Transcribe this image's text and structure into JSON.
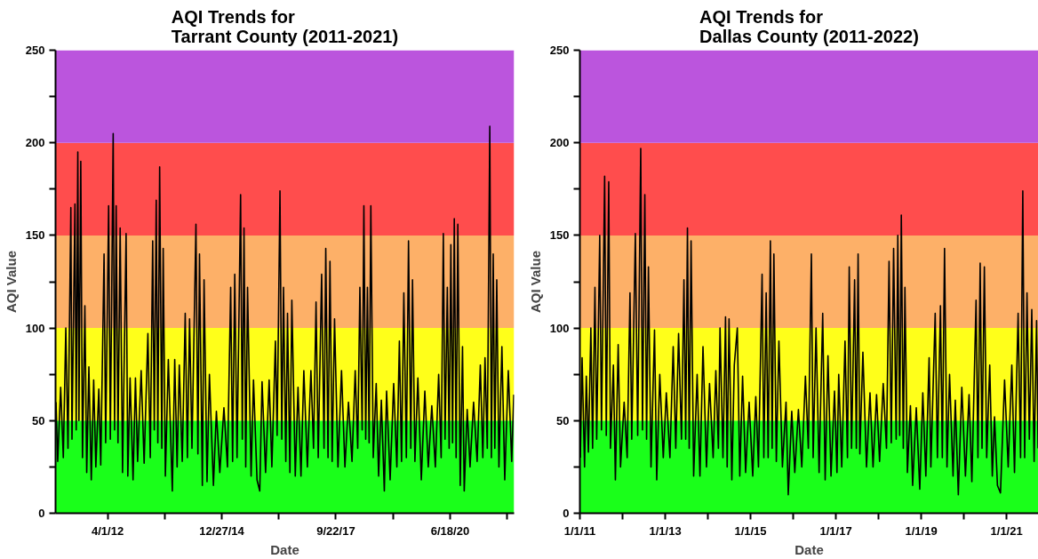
{
  "chart_data": [
    {
      "type": "line",
      "title": "AQI Trends for\nTarrant County (2011-2021)",
      "xlabel": "Date",
      "ylabel": "AQI Value",
      "xlim": [
        "2011-01-01",
        "2021-12-31"
      ],
      "xticks": [
        {
          "value": "2012-04-01",
          "label": "4/1/12"
        },
        {
          "value": "2013-08-14",
          "label": null
        },
        {
          "value": "2014-12-27",
          "label": "12/27/14"
        },
        {
          "value": "2016-05-10",
          "label": null
        },
        {
          "value": "2017-09-22",
          "label": "9/22/17"
        },
        {
          "value": "2019-02-04",
          "label": null
        },
        {
          "value": "2020-06-18",
          "label": "6/18/20"
        },
        {
          "value": "2021-10-31",
          "label": null
        }
      ],
      "ylim": [
        0,
        250
      ],
      "yticks": [
        0,
        {
          "value": 25,
          "label": null
        },
        50,
        {
          "value": 75,
          "label": null
        },
        100,
        {
          "value": 125,
          "label": null
        },
        150,
        {
          "value": 175,
          "label": null
        },
        200,
        {
          "value": 225,
          "label": null
        },
        250
      ],
      "bands": [
        {
          "axis": "y",
          "from": 0,
          "to": 50,
          "label": null,
          "color": "#1aff1a"
        },
        {
          "axis": "y",
          "from": 50,
          "to": 100,
          "label": null,
          "color": "#ffff1a"
        },
        {
          "axis": "y",
          "from": 100,
          "to": 150,
          "label": null,
          "color": "#fdb068"
        },
        {
          "axis": "y",
          "from": 150,
          "to": 200,
          "label": null,
          "color": "#ff4d4d"
        },
        {
          "axis": "y",
          "from": 200,
          "to": 250,
          "label": null,
          "color": "#bb55dd"
        }
      ],
      "series": [
        {
          "color": "#000000",
          "x": [
            "2011-01-05",
            "2011-01-20",
            "2011-02-15",
            "2011-03-10",
            "2011-04-01",
            "2011-04-20",
            "2011-05-15",
            "2011-05-25",
            "2011-06-20",
            "2011-07-01",
            "2011-07-15",
            "2011-07-25",
            "2011-08-10",
            "2011-08-25",
            "2011-09-15",
            "2011-10-01",
            "2011-10-20",
            "2011-11-10",
            "2011-12-01",
            "2011-12-20",
            "2012-01-15",
            "2012-02-01",
            "2012-03-01",
            "2012-03-15",
            "2012-04-10",
            "2012-04-25",
            "2012-05-20",
            "2012-06-01",
            "2012-06-15",
            "2012-07-01",
            "2012-07-20",
            "2012-08-10",
            "2012-09-10",
            "2012-09-25",
            "2012-10-15",
            "2012-11-10",
            "2012-12-01",
            "2012-12-20",
            "2013-01-20",
            "2013-02-15",
            "2013-03-20",
            "2013-04-10",
            "2013-05-01",
            "2013-05-15",
            "2013-06-01",
            "2013-06-15",
            "2013-07-01",
            "2013-07-20",
            "2013-08-01",
            "2013-08-20",
            "2013-09-15",
            "2013-10-20",
            "2013-11-10",
            "2013-12-01",
            "2013-12-20",
            "2014-01-15",
            "2014-02-10",
            "2014-03-01",
            "2014-03-20",
            "2014-04-10",
            "2014-05-15",
            "2014-06-01",
            "2014-06-15",
            "2014-07-10",
            "2014-07-25",
            "2014-08-20",
            "2014-09-10",
            "2014-10-15",
            "2014-11-10",
            "2014-12-10",
            "2015-01-15",
            "2015-02-15",
            "2015-03-15",
            "2015-04-01",
            "2015-04-20",
            "2015-05-10",
            "2015-06-10",
            "2015-06-25",
            "2015-07-10",
            "2015-07-25",
            "2015-08-10",
            "2015-09-10",
            "2015-10-01",
            "2015-11-01",
            "2015-11-25",
            "2015-12-15",
            "2016-01-15",
            "2016-02-15",
            "2016-03-10",
            "2016-04-10",
            "2016-04-25",
            "2016-05-20",
            "2016-06-05",
            "2016-06-20",
            "2016-07-10",
            "2016-07-25",
            "2016-08-15",
            "2016-09-01",
            "2016-10-01",
            "2016-10-25",
            "2016-11-20",
            "2016-12-15",
            "2017-01-15",
            "2017-02-15",
            "2017-03-10",
            "2017-04-01",
            "2017-04-20",
            "2017-05-20",
            "2017-06-10",
            "2017-06-25",
            "2017-07-15",
            "2017-08-01",
            "2017-08-20",
            "2017-09-10",
            "2017-10-10",
            "2017-11-10",
            "2017-12-10",
            "2018-01-10",
            "2018-02-10",
            "2018-03-10",
            "2018-04-01",
            "2018-04-20",
            "2018-05-10",
            "2018-05-25",
            "2018-06-10",
            "2018-06-25",
            "2018-07-10",
            "2018-07-25",
            "2018-08-15",
            "2018-09-10",
            "2018-10-01",
            "2018-10-25",
            "2018-11-20",
            "2018-12-10",
            "2019-01-10",
            "2019-02-10",
            "2019-03-10",
            "2019-04-01",
            "2019-04-20",
            "2019-05-10",
            "2019-06-01",
            "2019-06-20",
            "2019-07-10",
            "2019-07-25",
            "2019-08-15",
            "2019-09-10",
            "2019-10-10",
            "2019-11-10",
            "2019-12-10",
            "2020-01-10",
            "2020-02-10",
            "2020-03-10",
            "2020-04-01",
            "2020-04-20",
            "2020-05-05",
            "2020-05-25",
            "2020-06-10",
            "2020-06-25",
            "2020-07-10",
            "2020-07-25",
            "2020-08-10",
            "2020-08-25",
            "2020-09-15",
            "2020-10-05",
            "2020-10-20",
            "2020-11-15",
            "2020-12-10",
            "2021-01-10",
            "2021-02-10",
            "2021-03-10",
            "2021-04-01",
            "2021-04-20",
            "2021-05-10",
            "2021-06-01",
            "2021-06-15",
            "2021-07-01",
            "2021-07-15",
            "2021-08-01",
            "2021-08-20",
            "2021-09-15",
            "2021-10-10",
            "2021-11-10",
            "2021-12-10",
            "2021-12-28"
          ],
          "values": [
            60,
            28,
            68,
            30,
            100,
            35,
            165,
            40,
            167,
            45,
            195,
            50,
            190,
            30,
            112,
            22,
            79,
            18,
            72,
            25,
            67,
            26,
            140,
            38,
            166,
            40,
            205,
            45,
            166,
            38,
            154,
            22,
            151,
            20,
            73,
            18,
            73,
            28,
            77,
            27,
            97,
            30,
            147,
            45,
            169,
            38,
            187,
            35,
            143,
            20,
            83,
            12,
            83,
            25,
            80,
            28,
            108,
            30,
            105,
            35,
            156,
            32,
            140,
            15,
            126,
            17,
            75,
            15,
            55,
            22,
            57,
            25,
            122,
            28,
            129,
            30,
            172,
            40,
            154,
            25,
            122,
            20,
            72,
            18,
            12,
            71,
            22,
            72,
            25,
            93,
            42,
            174,
            40,
            122,
            28,
            108,
            22,
            115,
            20,
            68,
            20,
            77,
            25,
            77,
            35,
            114,
            30,
            129,
            35,
            143,
            30,
            136,
            28,
            105,
            25,
            77,
            25,
            60,
            28,
            77,
            35,
            122,
            45,
            166,
            40,
            122,
            38,
            166,
            30,
            70,
            20,
            61,
            12,
            66,
            18,
            70,
            25,
            93,
            28,
            119,
            30,
            147,
            35,
            126,
            28,
            73,
            18,
            66,
            25,
            58,
            25,
            75,
            30,
            151,
            40,
            122,
            35,
            145,
            38,
            159,
            30,
            156,
            15,
            90,
            12,
            56,
            25,
            60,
            28,
            80,
            30,
            84,
            35,
            209,
            30,
            140,
            35,
            126,
            25,
            90,
            18,
            77,
            28,
            64
          ]
        }
      ]
    },
    {
      "type": "line",
      "title": "AQI Trends for\nDallas County (2011-2022)",
      "xlabel": "Date",
      "ylabel": "AQI Value",
      "xlim": [
        "2011-01-01",
        "2021-10-01"
      ],
      "xticks": [
        {
          "value": "2011-01-01",
          "label": "1/1/11"
        },
        {
          "value": "2012-01-01",
          "label": null
        },
        {
          "value": "2013-01-01",
          "label": "1/1/13"
        },
        {
          "value": "2014-01-01",
          "label": null
        },
        {
          "value": "2015-01-01",
          "label": "1/1/15"
        },
        {
          "value": "2016-01-01",
          "label": null
        },
        {
          "value": "2017-01-01",
          "label": "1/1/17"
        },
        {
          "value": "2018-01-01",
          "label": null
        },
        {
          "value": "2019-01-01",
          "label": "1/1/19"
        },
        {
          "value": "2020-01-01",
          "label": null
        },
        {
          "value": "2021-01-01",
          "label": "1/1/21"
        }
      ],
      "ylim": [
        0,
        250
      ],
      "yticks": [
        0,
        {
          "value": 25,
          "label": null
        },
        50,
        {
          "value": 75,
          "label": null
        },
        100,
        {
          "value": 125,
          "label": null
        },
        150,
        {
          "value": 175,
          "label": null
        },
        200,
        {
          "value": 225,
          "label": null
        },
        250
      ],
      "bands": [
        {
          "axis": "y",
          "from": 0,
          "to": 50,
          "label": null,
          "color": "#1aff1a"
        },
        {
          "axis": "y",
          "from": 50,
          "to": 100,
          "label": null,
          "color": "#ffff1a"
        },
        {
          "axis": "y",
          "from": 100,
          "to": 150,
          "label": null,
          "color": "#fdb068"
        },
        {
          "axis": "y",
          "from": 150,
          "to": 200,
          "label": null,
          "color": "#ff4d4d"
        },
        {
          "axis": "y",
          "from": 200,
          "to": 250,
          "label": null,
          "color": "#bb55dd"
        }
      ],
      "series": [
        {
          "color": "#000000",
          "x": [
            "2011-01-05",
            "2011-01-20",
            "2011-02-10",
            "2011-02-25",
            "2011-03-15",
            "2011-04-05",
            "2011-04-20",
            "2011-05-10",
            "2011-05-25",
            "2011-06-20",
            "2011-07-05",
            "2011-08-01",
            "2011-08-15",
            "2011-09-05",
            "2011-09-20",
            "2011-10-15",
            "2011-11-01",
            "2011-11-25",
            "2011-12-15",
            "2012-01-15",
            "2012-02-10",
            "2012-03-05",
            "2012-03-20",
            "2012-04-20",
            "2012-05-10",
            "2012-06-05",
            "2012-06-20",
            "2012-07-10",
            "2012-07-25",
            "2012-08-10",
            "2012-09-01",
            "2012-10-01",
            "2012-10-20",
            "2012-11-15",
            "2012-12-15",
            "2013-01-10",
            "2013-02-10",
            "2013-03-10",
            "2013-04-01",
            "2013-04-25",
            "2013-05-20",
            "2013-06-10",
            "2013-06-25",
            "2013-07-10",
            "2013-07-25",
            "2013-08-10",
            "2013-09-01",
            "2013-10-01",
            "2013-10-25",
            "2013-11-20",
            "2013-12-20",
            "2014-01-15",
            "2014-02-15",
            "2014-03-10",
            "2014-04-01",
            "2014-04-15",
            "2014-05-10",
            "2014-06-01",
            "2014-06-15",
            "2014-07-01",
            "2014-07-25",
            "2014-08-15",
            "2014-09-10",
            "2014-10-01",
            "2014-10-25",
            "2014-11-20",
            "2014-12-20",
            "2015-01-20",
            "2015-02-15",
            "2015-03-10",
            "2015-04-10",
            "2015-04-25",
            "2015-05-15",
            "2015-06-01",
            "2015-06-20",
            "2015-07-05",
            "2015-07-20",
            "2015-08-10",
            "2015-09-01",
            "2015-10-01",
            "2015-11-01",
            "2015-11-20",
            "2015-12-20",
            "2016-01-15",
            "2016-02-15",
            "2016-03-15",
            "2016-04-15",
            "2016-05-10",
            "2016-06-05",
            "2016-06-20",
            "2016-07-15",
            "2016-08-10",
            "2016-09-10",
            "2016-10-01",
            "2016-10-25",
            "2016-11-20",
            "2016-12-20",
            "2017-01-10",
            "2017-01-25",
            "2017-02-20",
            "2017-03-20",
            "2017-04-10",
            "2017-04-25",
            "2017-05-15",
            "2017-06-10",
            "2017-06-25",
            "2017-07-10",
            "2017-07-25",
            "2017-08-20",
            "2017-09-20",
            "2017-10-20",
            "2017-11-15",
            "2017-12-15",
            "2018-01-10",
            "2018-02-10",
            "2018-03-10",
            "2018-04-01",
            "2018-04-20",
            "2018-05-10",
            "2018-06-01",
            "2018-06-15",
            "2018-07-01",
            "2018-07-15",
            "2018-08-01",
            "2018-08-15",
            "2018-09-05",
            "2018-10-01",
            "2018-10-20",
            "2018-11-20",
            "2018-12-20",
            "2019-01-15",
            "2019-02-10",
            "2019-03-10",
            "2019-03-25",
            "2019-05-01",
            "2019-05-20",
            "2019-06-15",
            "2019-07-01",
            "2019-07-20",
            "2019-08-10",
            "2019-09-01",
            "2019-10-01",
            "2019-10-20",
            "2019-11-15",
            "2019-12-15",
            "2020-01-15",
            "2020-02-15",
            "2020-03-10",
            "2020-04-15",
            "2020-05-01",
            "2020-05-20",
            "2020-06-05",
            "2020-06-25",
            "2020-07-15",
            "2020-08-10",
            "2020-09-01",
            "2020-09-20",
            "2020-10-15",
            "2020-11-10",
            "2020-12-15",
            "2021-01-15",
            "2021-02-15",
            "2021-03-10",
            "2021-04-10",
            "2021-05-01",
            "2021-05-20",
            "2021-06-05",
            "2021-06-25",
            "2021-07-15",
            "2021-08-05",
            "2021-08-25",
            "2021-09-15",
            "2021-09-28"
          ],
          "values": [
            30,
            84,
            25,
            74,
            33,
            100,
            35,
            122,
            40,
            150,
            45,
            182,
            42,
            179,
            35,
            80,
            18,
            91,
            25,
            60,
            30,
            119,
            40,
            151,
            42,
            197,
            45,
            172,
            40,
            133,
            25,
            99,
            18,
            75,
            30,
            65,
            30,
            90,
            35,
            97,
            40,
            126,
            40,
            154,
            35,
            147,
            20,
            75,
            20,
            90,
            25,
            70,
            30,
            77,
            35,
            100,
            30,
            106,
            25,
            105,
            18,
            80,
            100,
            20,
            74,
            22,
            60,
            20,
            63,
            25,
            129,
            30,
            119,
            30,
            147,
            35,
            140,
            28,
            93,
            25,
            60,
            10,
            55,
            22,
            56,
            25,
            74,
            35,
            140,
            30,
            100,
            22,
            108,
            18,
            85,
            20,
            66,
            22,
            75,
            25,
            93,
            30,
            133,
            35,
            126,
            35,
            140,
            32,
            87,
            25,
            65,
            25,
            64,
            28,
            70,
            35,
            136,
            38,
            143,
            40,
            150,
            42,
            161,
            35,
            122,
            22,
            58,
            15,
            57,
            13,
            65,
            20,
            84,
            25,
            108,
            30,
            112,
            30,
            143,
            25,
            75,
            20,
            61,
            10,
            68,
            20,
            64,
            17,
            115,
            30,
            135,
            35,
            133,
            30,
            80,
            20,
            52,
            15,
            11,
            72,
            25,
            80,
            22,
            108,
            30,
            174,
            30,
            119,
            40,
            110,
            28,
            104,
            35
          ]
        }
      ]
    }
  ]
}
